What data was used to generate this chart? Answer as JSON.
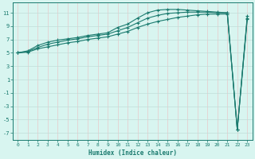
{
  "xlabel": "Humidex (Indice chaleur)",
  "x": [
    0,
    1,
    2,
    3,
    4,
    5,
    6,
    7,
    8,
    9,
    10,
    11,
    12,
    13,
    14,
    15,
    16,
    17,
    18,
    19,
    20,
    21,
    22,
    23
  ],
  "line1": [
    5.0,
    5.3,
    6.1,
    6.6,
    6.9,
    7.1,
    7.3,
    7.6,
    7.8,
    8.0,
    8.8,
    9.3,
    10.2,
    11.0,
    11.4,
    11.5,
    11.5,
    11.4,
    11.3,
    11.2,
    11.1,
    11.0,
    -6.5,
    10.5
  ],
  "line2": [
    5.0,
    5.2,
    5.8,
    6.3,
    6.6,
    6.9,
    7.1,
    7.4,
    7.6,
    7.8,
    8.3,
    8.8,
    9.5,
    10.2,
    10.6,
    10.9,
    11.0,
    11.1,
    11.1,
    11.1,
    11.0,
    11.0,
    -6.5,
    10.2
  ],
  "line3": [
    5.0,
    5.1,
    5.6,
    5.9,
    6.2,
    6.5,
    6.7,
    7.0,
    7.2,
    7.4,
    7.8,
    8.2,
    8.8,
    9.3,
    9.7,
    10.0,
    10.3,
    10.5,
    10.7,
    10.8,
    10.8,
    10.8,
    -6.5,
    10.0
  ],
  "line_color": "#1a7a6e",
  "bg_color": "#d8f5f0",
  "grid_color_h": "#c0ddd8",
  "grid_color_v": "#e8c8c8",
  "ylim": [
    -8,
    12.5
  ],
  "xlim": [
    -0.5,
    23.5
  ],
  "yticks": [
    -7,
    -5,
    -3,
    -1,
    1,
    3,
    5,
    7,
    9,
    11
  ],
  "xticks": [
    0,
    1,
    2,
    3,
    4,
    5,
    6,
    7,
    8,
    9,
    10,
    11,
    12,
    13,
    14,
    15,
    16,
    17,
    18,
    19,
    20,
    21,
    22,
    23
  ],
  "marker": "+"
}
